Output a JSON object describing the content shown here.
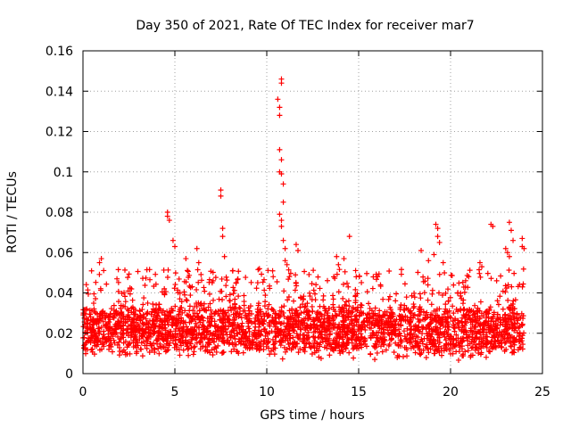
{
  "chart_data": {
    "type": "scatter",
    "title": "Day 350 of 2021, Rate Of TEC Index for receiver mar7",
    "xlabel": "GPS time / hours",
    "ylabel": "ROTI / TECUs",
    "xlim": [
      0,
      25
    ],
    "ylim": [
      0,
      0.16
    ],
    "x_ticks": [
      "0",
      "5",
      "10",
      "15",
      "20",
      "25"
    ],
    "y_ticks": [
      "0",
      "0.02",
      "0.04",
      "0.06",
      "0.08",
      "0.1",
      "0.12",
      "0.14",
      "0.16"
    ],
    "grid": true,
    "marker": "+",
    "series": [
      {
        "name": "ROTI",
        "color": "#ff0000",
        "baseline_range": [
          0.008,
          0.036
        ],
        "notable_points": [
          {
            "x": 0.9,
            "y": 0.055
          },
          {
            "x": 1.0,
            "y": 0.057
          },
          {
            "x": 4.6,
            "y": 0.08
          },
          {
            "x": 4.6,
            "y": 0.078
          },
          {
            "x": 4.7,
            "y": 0.076
          },
          {
            "x": 4.9,
            "y": 0.066
          },
          {
            "x": 5.0,
            "y": 0.063
          },
          {
            "x": 5.6,
            "y": 0.057
          },
          {
            "x": 6.2,
            "y": 0.062
          },
          {
            "x": 6.3,
            "y": 0.055
          },
          {
            "x": 7.5,
            "y": 0.091
          },
          {
            "x": 7.5,
            "y": 0.088
          },
          {
            "x": 7.6,
            "y": 0.072
          },
          {
            "x": 7.6,
            "y": 0.068
          },
          {
            "x": 7.7,
            "y": 0.058
          },
          {
            "x": 9.6,
            "y": 0.052
          },
          {
            "x": 10.6,
            "y": 0.136
          },
          {
            "x": 10.7,
            "y": 0.132
          },
          {
            "x": 10.7,
            "y": 0.128
          },
          {
            "x": 10.8,
            "y": 0.146
          },
          {
            "x": 10.8,
            "y": 0.144
          },
          {
            "x": 10.7,
            "y": 0.111
          },
          {
            "x": 10.8,
            "y": 0.106
          },
          {
            "x": 10.7,
            "y": 0.1
          },
          {
            "x": 10.8,
            "y": 0.099
          },
          {
            "x": 10.9,
            "y": 0.094
          },
          {
            "x": 10.9,
            "y": 0.085
          },
          {
            "x": 10.7,
            "y": 0.079
          },
          {
            "x": 10.8,
            "y": 0.076
          },
          {
            "x": 10.8,
            "y": 0.073
          },
          {
            "x": 10.9,
            "y": 0.066
          },
          {
            "x": 11.0,
            "y": 0.062
          },
          {
            "x": 11.0,
            "y": 0.056
          },
          {
            "x": 11.1,
            "y": 0.054
          },
          {
            "x": 11.6,
            "y": 0.064
          },
          {
            "x": 11.7,
            "y": 0.061
          },
          {
            "x": 13.8,
            "y": 0.058
          },
          {
            "x": 14.2,
            "y": 0.057
          },
          {
            "x": 14.5,
            "y": 0.068
          },
          {
            "x": 13.9,
            "y": 0.054
          },
          {
            "x": 18.4,
            "y": 0.061
          },
          {
            "x": 18.8,
            "y": 0.056
          },
          {
            "x": 19.2,
            "y": 0.074
          },
          {
            "x": 19.3,
            "y": 0.072
          },
          {
            "x": 19.3,
            "y": 0.068
          },
          {
            "x": 19.4,
            "y": 0.065
          },
          {
            "x": 19.1,
            "y": 0.059
          },
          {
            "x": 19.6,
            "y": 0.055
          },
          {
            "x": 21.6,
            "y": 0.055
          },
          {
            "x": 21.7,
            "y": 0.053
          },
          {
            "x": 22.2,
            "y": 0.074
          },
          {
            "x": 22.3,
            "y": 0.073
          },
          {
            "x": 23.0,
            "y": 0.062
          },
          {
            "x": 23.1,
            "y": 0.06
          },
          {
            "x": 23.2,
            "y": 0.058
          },
          {
            "x": 23.2,
            "y": 0.075
          },
          {
            "x": 23.3,
            "y": 0.071
          },
          {
            "x": 23.4,
            "y": 0.066
          },
          {
            "x": 23.9,
            "y": 0.067
          },
          {
            "x": 23.9,
            "y": 0.063
          },
          {
            "x": 24.0,
            "y": 0.062
          }
        ]
      }
    ]
  }
}
